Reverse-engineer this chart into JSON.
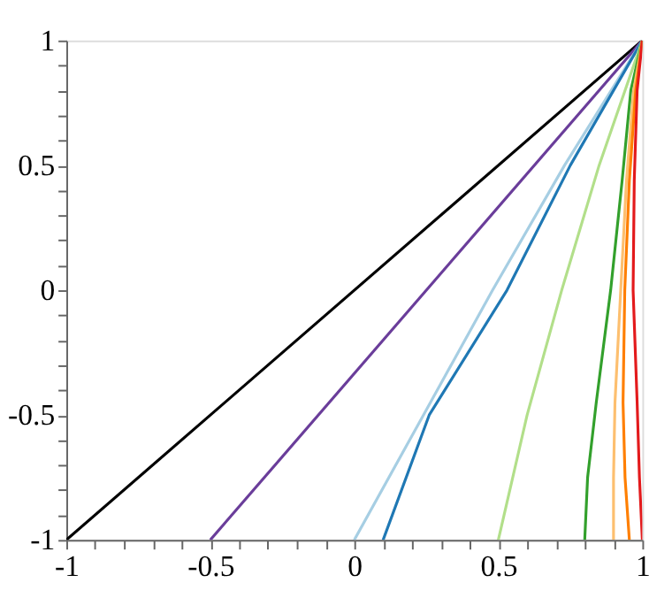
{
  "chart_data": {
    "type": "line",
    "xlim": [
      -1,
      1
    ],
    "ylim": [
      -1,
      1
    ],
    "xticks": [
      -1,
      {
        "value": -0.9,
        "label": null
      },
      {
        "value": -0.8,
        "label": null
      },
      {
        "value": -0.7,
        "label": null
      },
      {
        "value": -0.6,
        "label": null
      },
      -0.5,
      {
        "value": -0.4,
        "label": null
      },
      {
        "value": -0.3,
        "label": null
      },
      {
        "value": -0.2,
        "label": null
      },
      {
        "value": -0.1,
        "label": null
      },
      0,
      {
        "value": 0.1,
        "label": null
      },
      {
        "value": 0.2,
        "label": null
      },
      {
        "value": 0.3,
        "label": null
      },
      {
        "value": 0.4,
        "label": null
      },
      0.5,
      {
        "value": 0.6,
        "label": null
      },
      {
        "value": 0.7,
        "label": null
      },
      {
        "value": 0.8,
        "label": null
      },
      {
        "value": 0.9,
        "label": null
      },
      1
    ],
    "yticks": [
      -1,
      {
        "value": -0.9,
        "label": null
      },
      {
        "value": -0.8,
        "label": null
      },
      {
        "value": -0.7,
        "label": null
      },
      {
        "value": -0.6,
        "label": null
      },
      -0.5,
      {
        "value": -0.4,
        "label": null
      },
      {
        "value": -0.3,
        "label": null
      },
      {
        "value": -0.2,
        "label": null
      },
      {
        "value": -0.1,
        "label": null
      },
      0,
      {
        "value": 0.1,
        "label": null
      },
      {
        "value": 0.2,
        "label": null
      },
      {
        "value": 0.3,
        "label": null
      },
      {
        "value": 0.4,
        "label": null
      },
      0.5,
      {
        "value": 0.6,
        "label": null
      },
      {
        "value": 0.7,
        "label": null
      },
      {
        "value": 0.8,
        "label": null
      },
      {
        "value": 0.9,
        "label": null
      },
      1
    ],
    "grid": false,
    "legend": false,
    "marker": "none",
    "line_style": "solid",
    "series": [
      {
        "color": "#000000",
        "x": [
          -1,
          1
        ],
        "values": [
          -1,
          1
        ]
      },
      {
        "color": "#6a3d9a",
        "x": [
          -0.5,
          1
        ],
        "values": [
          -1,
          1
        ]
      },
      {
        "color": "#a6cee3",
        "x": [
          0,
          0.24,
          0.48,
          0.73,
          1
        ],
        "values": [
          -1,
          -0.5,
          0,
          0.5,
          1
        ]
      },
      {
        "color": "#1f78b4",
        "x": [
          0.1,
          0.26,
          0.53,
          0.75,
          1
        ],
        "values": [
          -1,
          -0.5,
          0,
          0.5,
          1
        ]
      },
      {
        "color": "#b2df8a",
        "x": [
          0.5,
          0.6,
          0.72,
          0.85,
          0.94,
          1
        ],
        "values": [
          -1,
          -0.5,
          0,
          0.5,
          0.8,
          1
        ]
      },
      {
        "color": "#33a02c",
        "x": [
          0.8,
          0.81,
          0.84,
          0.89,
          0.93,
          0.96,
          1
        ],
        "values": [
          -1,
          -0.75,
          -0.45,
          0,
          0.44,
          0.8,
          1
        ]
      },
      {
        "color": "#fdbf6f",
        "x": [
          0.9,
          0.9,
          0.905,
          0.925,
          0.945,
          0.97,
          1
        ],
        "values": [
          -1,
          -0.75,
          -0.45,
          0,
          0.44,
          0.8,
          1
        ]
      },
      {
        "color": "#ff7f00",
        "x": [
          0.955,
          0.94,
          0.933,
          0.939,
          0.955,
          0.977,
          1
        ],
        "values": [
          -1,
          -0.75,
          -0.45,
          0,
          0.44,
          0.8,
          1
        ]
      },
      {
        "color": "#e31a1c",
        "x": [
          1,
          0.99,
          0.982,
          0.968,
          0.972,
          0.982,
          1
        ],
        "values": [
          -1,
          -0.75,
          -0.45,
          0,
          0.44,
          0.8,
          1
        ]
      }
    ]
  }
}
